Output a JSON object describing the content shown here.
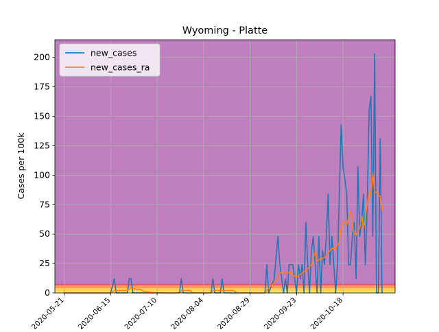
{
  "chart_data": {
    "type": "line",
    "title": "Wyoming - Platte",
    "xlabel": "",
    "ylabel": "Cases per 100k",
    "x_ticks": [
      "2020-05-21",
      "2020-06-15",
      "2020-07-10",
      "2020-08-04",
      "2020-08-29",
      "2020-09-23",
      "2020-10-18"
    ],
    "xlim": [
      "2020-05-16",
      "2020-11-15"
    ],
    "ylim": [
      0,
      215
    ],
    "y_ticks": [
      0,
      25,
      50,
      75,
      100,
      125,
      150,
      175,
      200
    ],
    "grid": true,
    "legend_position": "top-left",
    "background_bands": [
      {
        "from": 0,
        "to": 1,
        "color": "#ffff66"
      },
      {
        "from": 1,
        "to": 4,
        "color": "#ffd24d"
      },
      {
        "from": 4,
        "to": 7,
        "color": "#ff9955"
      },
      {
        "from": 7,
        "to": 215,
        "color": "#bf7fbf"
      }
    ],
    "band_edge_color": "#e8405a",
    "series": [
      {
        "name": "new_cases",
        "color": "#1f77b4",
        "points": [
          [
            "2020-05-21",
            0
          ],
          [
            "2020-06-15",
            0
          ],
          [
            "2020-06-16",
            6
          ],
          [
            "2020-06-17",
            12
          ],
          [
            "2020-06-18",
            0
          ],
          [
            "2020-06-24",
            0
          ],
          [
            "2020-06-25",
            12
          ],
          [
            "2020-06-26",
            12
          ],
          [
            "2020-06-27",
            0
          ],
          [
            "2020-07-22",
            0
          ],
          [
            "2020-07-23",
            12
          ],
          [
            "2020-07-24",
            0
          ],
          [
            "2020-08-08",
            0
          ],
          [
            "2020-08-09",
            12
          ],
          [
            "2020-08-10",
            0
          ],
          [
            "2020-08-13",
            0
          ],
          [
            "2020-08-14",
            12
          ],
          [
            "2020-08-15",
            0
          ],
          [
            "2020-09-06",
            0
          ],
          [
            "2020-09-07",
            24
          ],
          [
            "2020-09-08",
            0
          ],
          [
            "2020-09-11",
            12
          ],
          [
            "2020-09-13",
            48
          ],
          [
            "2020-09-14",
            24
          ],
          [
            "2020-09-15",
            12
          ],
          [
            "2020-09-16",
            0
          ],
          [
            "2020-09-17",
            12
          ],
          [
            "2020-09-18",
            0
          ],
          [
            "2020-09-19",
            24
          ],
          [
            "2020-09-21",
            24
          ],
          [
            "2020-09-22",
            12
          ],
          [
            "2020-09-23",
            0
          ],
          [
            "2020-09-24",
            24
          ],
          [
            "2020-09-25",
            12
          ],
          [
            "2020-09-26",
            24
          ],
          [
            "2020-09-27",
            0
          ],
          [
            "2020-09-28",
            60
          ],
          [
            "2020-09-29",
            24
          ],
          [
            "2020-09-30",
            0
          ],
          [
            "2020-10-01",
            36
          ],
          [
            "2020-10-02",
            48
          ],
          [
            "2020-10-03",
            24
          ],
          [
            "2020-10-04",
            0
          ],
          [
            "2020-10-05",
            48
          ],
          [
            "2020-10-06",
            0
          ],
          [
            "2020-10-07",
            36
          ],
          [
            "2020-10-08",
            24
          ],
          [
            "2020-10-09",
            48
          ],
          [
            "2020-10-10",
            84
          ],
          [
            "2020-10-11",
            24
          ],
          [
            "2020-10-12",
            48
          ],
          [
            "2020-10-13",
            24
          ],
          [
            "2020-10-14",
            0
          ],
          [
            "2020-10-15",
            24
          ],
          [
            "2020-10-16",
            84
          ],
          [
            "2020-10-17",
            143
          ],
          [
            "2020-10-18",
            107
          ],
          [
            "2020-10-19",
            96
          ],
          [
            "2020-10-20",
            84
          ],
          [
            "2020-10-21",
            24
          ],
          [
            "2020-10-22",
            24
          ],
          [
            "2020-10-23",
            48
          ],
          [
            "2020-10-24",
            60
          ],
          [
            "2020-10-25",
            12
          ],
          [
            "2020-10-26",
            107
          ],
          [
            "2020-10-27",
            48
          ],
          [
            "2020-10-28",
            60
          ],
          [
            "2020-10-29",
            84
          ],
          [
            "2020-10-30",
            24
          ],
          [
            "2020-10-31",
            72
          ],
          [
            "2020-11-01",
            155
          ],
          [
            "2020-11-02",
            167
          ],
          [
            "2020-11-03",
            48
          ],
          [
            "2020-11-04",
            203
          ],
          [
            "2020-11-05",
            0
          ],
          [
            "2020-11-06",
            0
          ],
          [
            "2020-11-07",
            131
          ],
          [
            "2020-11-08",
            0
          ]
        ]
      },
      {
        "name": "new_cases_ra",
        "color": "#ff7f0e",
        "points": [
          [
            "2020-05-21",
            0
          ],
          [
            "2020-06-15",
            0
          ],
          [
            "2020-06-17",
            2
          ],
          [
            "2020-06-20",
            2
          ],
          [
            "2020-06-24",
            2
          ],
          [
            "2020-06-26",
            4
          ],
          [
            "2020-06-29",
            3
          ],
          [
            "2020-07-01",
            3
          ],
          [
            "2020-07-03",
            1
          ],
          [
            "2020-07-10",
            0
          ],
          [
            "2020-07-22",
            0
          ],
          [
            "2020-07-23",
            2
          ],
          [
            "2020-07-28",
            2
          ],
          [
            "2020-07-29",
            0
          ],
          [
            "2020-08-08",
            0
          ],
          [
            "2020-08-09",
            2
          ],
          [
            "2020-08-15",
            2
          ],
          [
            "2020-08-20",
            2
          ],
          [
            "2020-08-22",
            0
          ],
          [
            "2020-09-06",
            0
          ],
          [
            "2020-09-08",
            4
          ],
          [
            "2020-09-10",
            7
          ],
          [
            "2020-09-13",
            12
          ],
          [
            "2020-09-14",
            17
          ],
          [
            "2020-09-17",
            18
          ],
          [
            "2020-09-20",
            17
          ],
          [
            "2020-09-22",
            14
          ],
          [
            "2020-09-24",
            14
          ],
          [
            "2020-09-26",
            17
          ],
          [
            "2020-09-28",
            19
          ],
          [
            "2020-10-01",
            24
          ],
          [
            "2020-10-03",
            35
          ],
          [
            "2020-10-04",
            27
          ],
          [
            "2020-10-06",
            29
          ],
          [
            "2020-10-08",
            30
          ],
          [
            "2020-10-10",
            34
          ],
          [
            "2020-10-12",
            38
          ],
          [
            "2020-10-14",
            37
          ],
          [
            "2020-10-16",
            44
          ],
          [
            "2020-10-17",
            55
          ],
          [
            "2020-10-18",
            60
          ],
          [
            "2020-10-19",
            60
          ],
          [
            "2020-10-20",
            58
          ],
          [
            "2020-10-21",
            64
          ],
          [
            "2020-10-22",
            69
          ],
          [
            "2020-10-23",
            60
          ],
          [
            "2020-10-24",
            50
          ],
          [
            "2020-10-25",
            49
          ],
          [
            "2020-10-26",
            53
          ],
          [
            "2020-10-27",
            55
          ],
          [
            "2020-10-28",
            65
          ],
          [
            "2020-10-29",
            55
          ],
          [
            "2020-10-30",
            63
          ],
          [
            "2020-10-31",
            76
          ],
          [
            "2020-11-01",
            86
          ],
          [
            "2020-11-02",
            82
          ],
          [
            "2020-11-03",
            102
          ],
          [
            "2020-11-04",
            85
          ],
          [
            "2020-11-05",
            86
          ],
          [
            "2020-11-06",
            83
          ],
          [
            "2020-11-07",
            82
          ],
          [
            "2020-11-08",
            70
          ]
        ]
      }
    ]
  }
}
